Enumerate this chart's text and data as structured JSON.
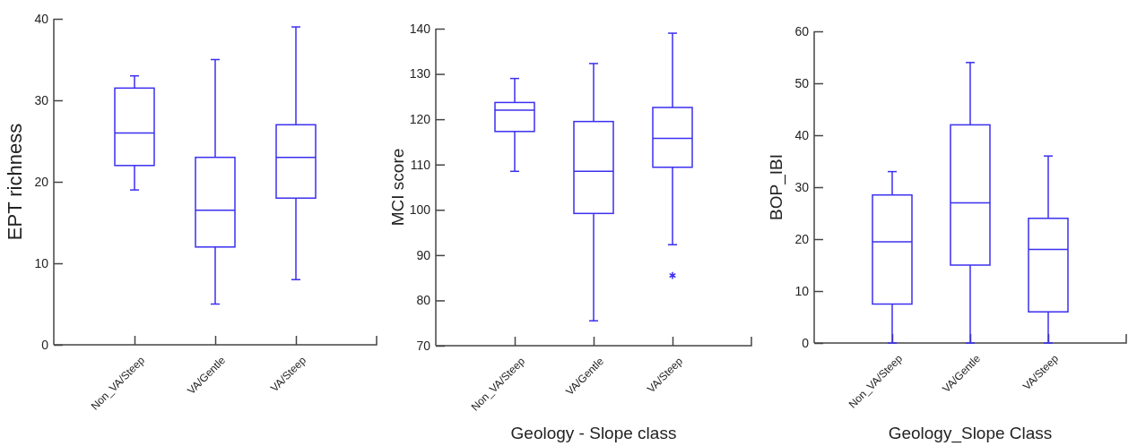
{
  "chart_data": [
    {
      "type": "box",
      "ylabel": "EPT richness",
      "categories": [
        "Non_VA/Steep",
        "VA/Gentle",
        "VA/Steep"
      ],
      "ylim": [
        0,
        40
      ],
      "yticks": [
        0,
        10,
        20,
        30,
        40
      ],
      "grid": false,
      "series": [
        {
          "color": "#3b2ff0",
          "boxes": [
            {
              "low": 19,
              "q1": 22,
              "median": 26,
              "q3": 31.5,
              "high": 33
            },
            {
              "low": 5,
              "q1": 12,
              "median": 16.5,
              "q3": 23,
              "high": 35
            },
            {
              "low": 8,
              "q1": 18,
              "median": 23,
              "q3": 27,
              "high": 39
            }
          ]
        }
      ]
    },
    {
      "type": "box",
      "ylabel": "MCI score",
      "xlabel": "Geology - Slope class",
      "categories": [
        "Non_VA/Steep",
        "VA/Gentle",
        "VA/Steep"
      ],
      "ylim": [
        70,
        140
      ],
      "yticks": [
        70,
        80,
        90,
        100,
        110,
        120,
        130,
        140
      ],
      "grid": false,
      "series": [
        {
          "color": "#3b2ff0",
          "boxes": [
            {
              "low": 108.5,
              "q1": 117.3,
              "median": 122,
              "q3": 123.7,
              "high": 129
            },
            {
              "low": 75.5,
              "q1": 99.2,
              "median": 108.5,
              "q3": 119.5,
              "high": 132.3
            },
            {
              "low": 92.3,
              "q1": 109.4,
              "median": 115.8,
              "q3": 122.6,
              "high": 139,
              "outliers": [
                85.5
              ]
            }
          ]
        }
      ]
    },
    {
      "type": "box",
      "ylabel": "BOP_IBI",
      "xlabel": "Geology_Slope Class",
      "categories": [
        "Non_VA/Steep",
        "VA/Gentle",
        "VA/Steep"
      ],
      "ylim": [
        0,
        60
      ],
      "yticks": [
        0,
        10,
        20,
        30,
        40,
        50,
        60
      ],
      "grid": false,
      "series": [
        {
          "color": "#3b2ff0",
          "boxes": [
            {
              "low": 0,
              "q1": 7.5,
              "median": 19.5,
              "q3": 28.5,
              "high": 33
            },
            {
              "low": 0,
              "q1": 15,
              "median": 27,
              "q3": 42,
              "high": 54
            },
            {
              "low": 0,
              "q1": 6,
              "median": 18,
              "q3": 24,
              "high": 36
            }
          ]
        }
      ]
    }
  ]
}
